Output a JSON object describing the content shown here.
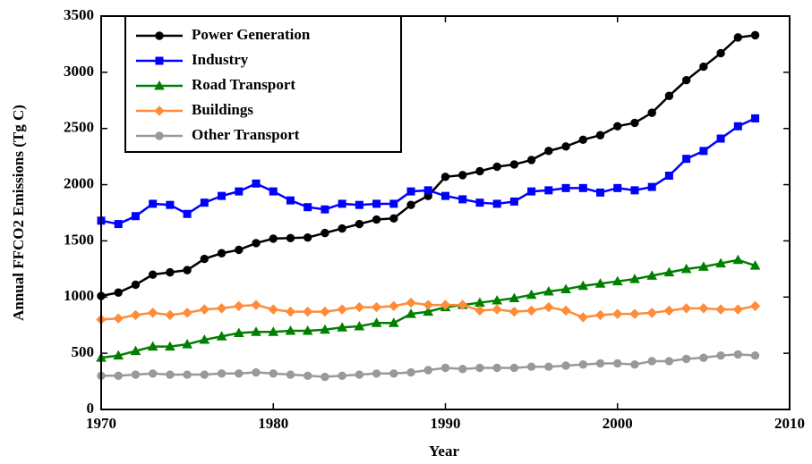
{
  "chart_data": {
    "type": "line",
    "x_label": "Year",
    "y_label": "Annual FFCO2 Emissions (Tg C)",
    "x": [
      1970,
      1971,
      1972,
      1973,
      1974,
      1975,
      1976,
      1977,
      1978,
      1979,
      1980,
      1981,
      1982,
      1983,
      1984,
      1985,
      1986,
      1987,
      1988,
      1989,
      1990,
      1991,
      1992,
      1993,
      1994,
      1995,
      1996,
      1997,
      1998,
      1999,
      2000,
      2001,
      2002,
      2003,
      2004,
      2005,
      2006,
      2007,
      2008
    ],
    "xlim": [
      1970,
      2010
    ],
    "xticks": [
      1970,
      1980,
      1990,
      2000,
      2010
    ],
    "ylim": [
      0,
      3500
    ],
    "yticks": [
      0,
      500,
      1000,
      1500,
      2000,
      2500,
      3000,
      3500
    ],
    "legend": "upper left",
    "series": [
      {
        "name": "Power Generation",
        "color": "#000000",
        "marker": "circle",
        "values": [
          1010,
          1040,
          1110,
          1200,
          1220,
          1240,
          1340,
          1390,
          1420,
          1480,
          1520,
          1525,
          1530,
          1570,
          1610,
          1650,
          1690,
          1700,
          1820,
          1900,
          2070,
          2085,
          2120,
          2160,
          2180,
          2220,
          2300,
          2340,
          2400,
          2440,
          2520,
          2550,
          2640,
          2790,
          2930,
          3050,
          3170,
          3310,
          3330
        ]
      },
      {
        "name": "Industry",
        "color": "#0000ff",
        "marker": "square",
        "values": [
          1680,
          1650,
          1720,
          1830,
          1820,
          1740,
          1840,
          1900,
          1940,
          2010,
          1940,
          1860,
          1800,
          1780,
          1830,
          1820,
          1830,
          1830,
          1940,
          1950,
          1900,
          1870,
          1840,
          1830,
          1850,
          1940,
          1950,
          1970,
          1970,
          1930,
          1970,
          1950,
          1980,
          2080,
          2230,
          2300,
          2410,
          2520,
          2590
        ]
      },
      {
        "name": "Road Transport",
        "color": "#008000",
        "marker": "triangle",
        "values": [
          460,
          480,
          520,
          560,
          560,
          580,
          620,
          650,
          680,
          690,
          690,
          700,
          700,
          710,
          730,
          740,
          770,
          770,
          850,
          870,
          910,
          930,
          950,
          970,
          990,
          1020,
          1050,
          1070,
          1100,
          1120,
          1140,
          1160,
          1190,
          1220,
          1250,
          1270,
          1300,
          1330,
          1280
        ]
      },
      {
        "name": "Buildings",
        "color": "#ff8c3a",
        "marker": "diamond",
        "values": [
          800,
          810,
          840,
          860,
          840,
          860,
          890,
          900,
          920,
          930,
          890,
          870,
          870,
          870,
          890,
          910,
          910,
          920,
          950,
          930,
          930,
          930,
          880,
          890,
          870,
          880,
          910,
          880,
          820,
          840,
          850,
          850,
          860,
          880,
          900,
          900,
          890,
          890,
          920
        ]
      },
      {
        "name": "Other Transport",
        "color": "#999999",
        "marker": "circle",
        "values": [
          300,
          300,
          310,
          320,
          310,
          310,
          310,
          320,
          320,
          330,
          320,
          310,
          300,
          290,
          300,
          310,
          320,
          320,
          330,
          350,
          370,
          360,
          370,
          370,
          370,
          380,
          380,
          390,
          400,
          410,
          410,
          400,
          430,
          430,
          450,
          460,
          480,
          490,
          480
        ]
      }
    ]
  }
}
